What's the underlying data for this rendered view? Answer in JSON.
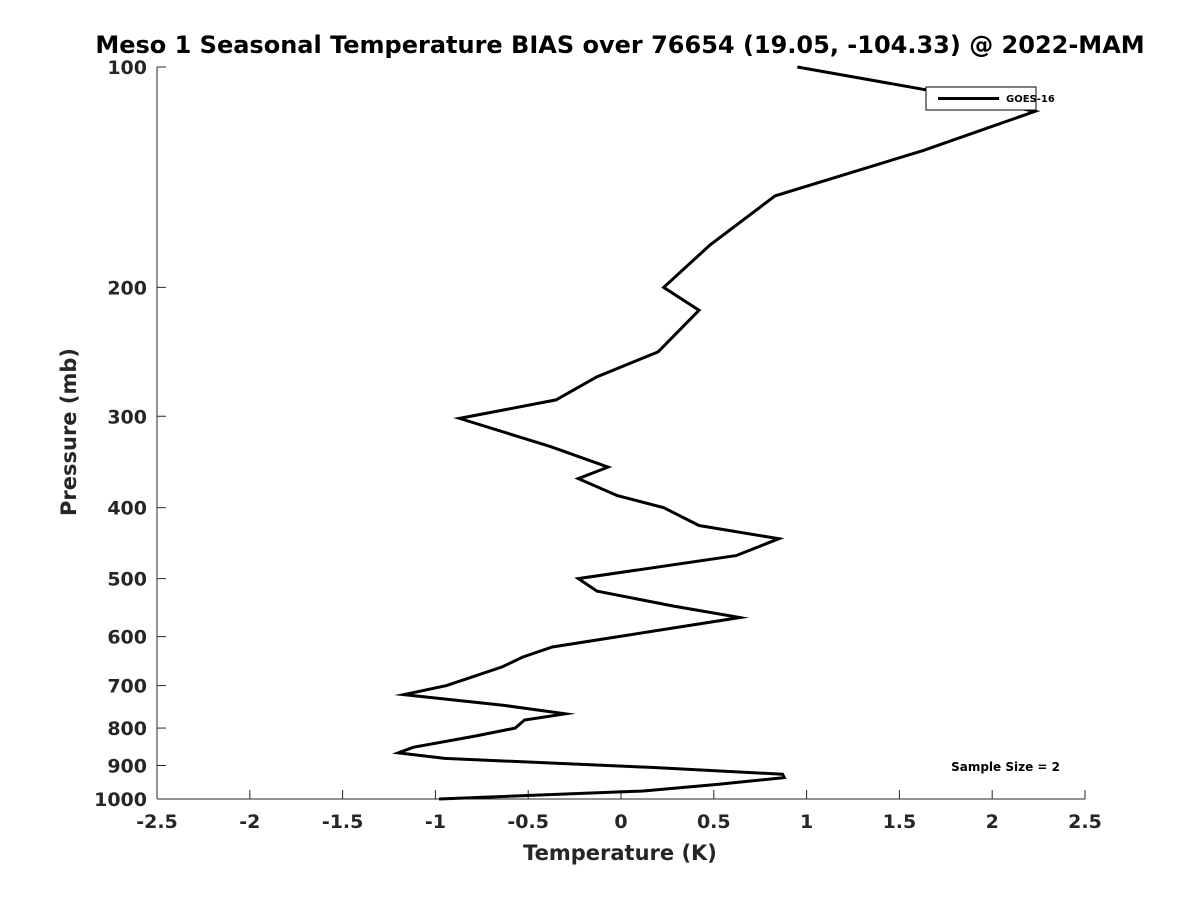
{
  "chart_data": {
    "type": "line",
    "title": "Meso 1 Seasonal Temperature BIAS over 76654 (19.05, -104.33) @ 2022-MAM",
    "xlabel": "Temperature (K)",
    "ylabel": "Pressure (mb)",
    "xlim": [
      -2.5,
      2.5
    ],
    "ylim": [
      100,
      1000
    ],
    "y_scale": "log",
    "y_reversed": true,
    "x_ticks": [
      -2.5,
      -2,
      -1.5,
      -1,
      -0.5,
      0,
      0.5,
      1,
      1.5,
      2,
      2.5
    ],
    "x_tick_labels": [
      "-2.5",
      "-2",
      "-1.5",
      "-1",
      "-0.5",
      "0",
      "0.5",
      "1",
      "1.5",
      "2",
      "2.5"
    ],
    "y_ticks": [
      100,
      200,
      300,
      400,
      500,
      600,
      700,
      800,
      900,
      1000
    ],
    "y_tick_labels": [
      "100",
      "200",
      "300",
      "400",
      "500",
      "600",
      "700",
      "800",
      "900",
      "1000"
    ],
    "grid": false,
    "legend_position": "top-right",
    "series": [
      {
        "name": "GOES-16",
        "color": "#000000",
        "points": [
          {
            "t": 0.95,
            "p": 100
          },
          {
            "t": 1.87,
            "p": 110
          },
          {
            "t": 2.23,
            "p": 115
          },
          {
            "t": 1.63,
            "p": 130
          },
          {
            "t": 0.83,
            "p": 150
          },
          {
            "t": 0.48,
            "p": 175
          },
          {
            "t": 0.23,
            "p": 200
          },
          {
            "t": 0.42,
            "p": 215
          },
          {
            "t": 0.2,
            "p": 245
          },
          {
            "t": -0.13,
            "p": 265
          },
          {
            "t": -0.35,
            "p": 285
          },
          {
            "t": -0.87,
            "p": 302
          },
          {
            "t": -0.38,
            "p": 330
          },
          {
            "t": -0.07,
            "p": 352
          },
          {
            "t": -0.23,
            "p": 365
          },
          {
            "t": -0.02,
            "p": 385
          },
          {
            "t": 0.23,
            "p": 400
          },
          {
            "t": 0.42,
            "p": 423
          },
          {
            "t": 0.85,
            "p": 441
          },
          {
            "t": 0.62,
            "p": 465
          },
          {
            "t": -0.23,
            "p": 500
          },
          {
            "t": -0.13,
            "p": 520
          },
          {
            "t": 0.28,
            "p": 545
          },
          {
            "t": 0.64,
            "p": 565
          },
          {
            "t": -0.37,
            "p": 620
          },
          {
            "t": -0.53,
            "p": 640
          },
          {
            "t": -0.64,
            "p": 660
          },
          {
            "t": -0.83,
            "p": 685
          },
          {
            "t": -0.94,
            "p": 700
          },
          {
            "t": -1.17,
            "p": 720
          },
          {
            "t": -0.63,
            "p": 745
          },
          {
            "t": -0.3,
            "p": 765
          },
          {
            "t": -0.52,
            "p": 780
          },
          {
            "t": -0.57,
            "p": 800
          },
          {
            "t": -0.78,
            "p": 820
          },
          {
            "t": -1.12,
            "p": 850
          },
          {
            "t": -1.2,
            "p": 865
          },
          {
            "t": -0.95,
            "p": 880
          },
          {
            "t": 0.15,
            "p": 905
          },
          {
            "t": 0.87,
            "p": 925
          },
          {
            "t": 0.88,
            "p": 935
          },
          {
            "t": 0.52,
            "p": 955
          },
          {
            "t": 0.12,
            "p": 975
          },
          {
            "t": -0.98,
            "p": 1000
          }
        ]
      }
    ],
    "annotations": [
      {
        "text": "Sample Size = 2",
        "position": "bottom-right"
      }
    ]
  }
}
